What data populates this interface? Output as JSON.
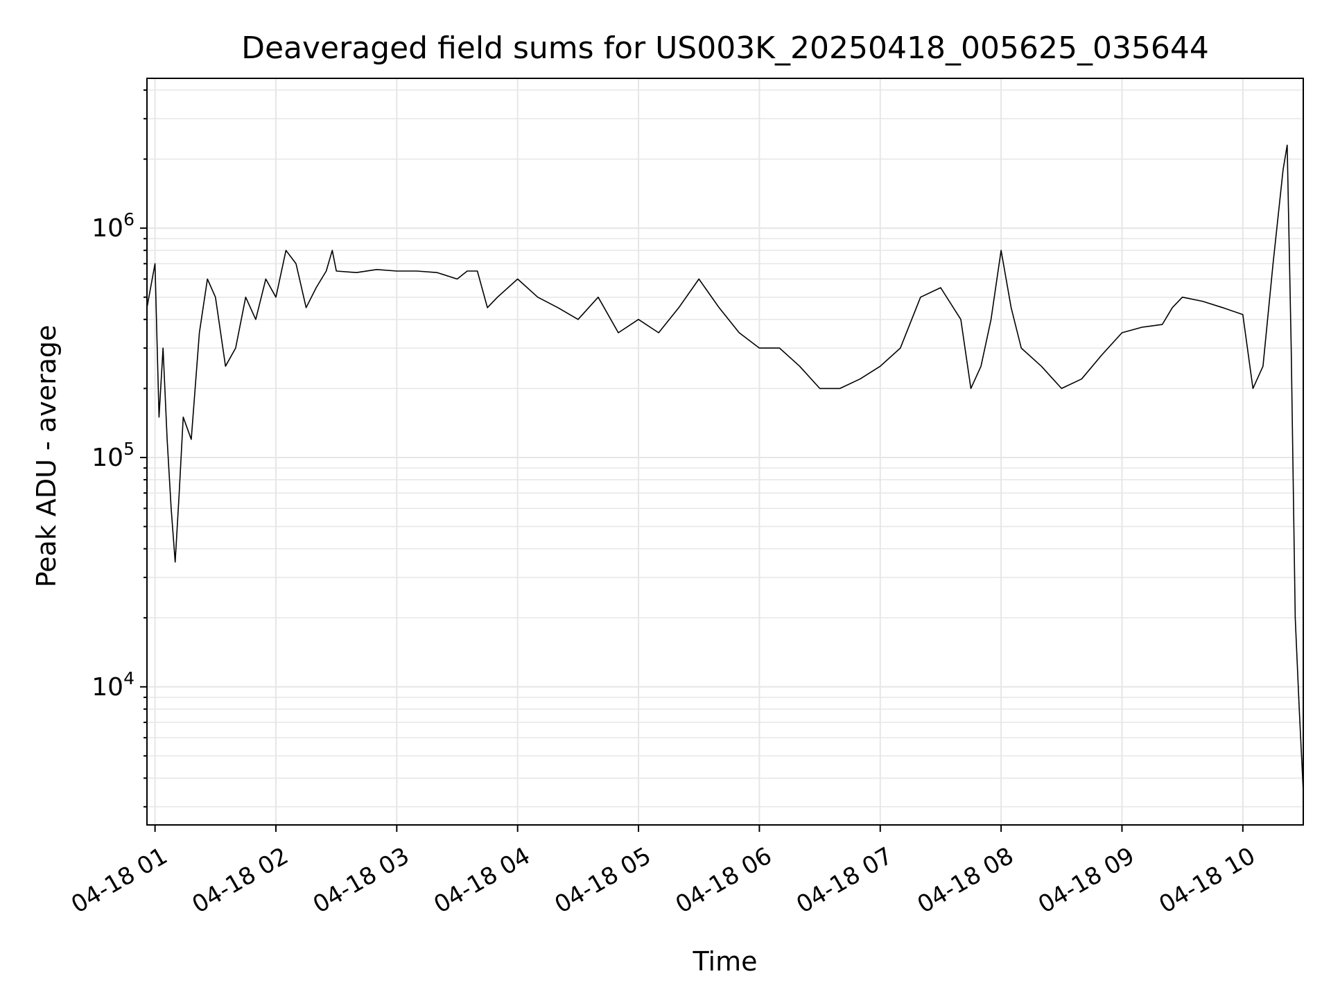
{
  "chart_data": {
    "type": "line",
    "title": "Deaveraged field sums for US003K_20250418_005625_035644",
    "xlabel": "Time",
    "ylabel": "Peak ADU - average",
    "y_scale": "log",
    "ylim": [
      2500,
      4500000
    ],
    "xlim": [
      "2025-04-18 00:56",
      "2025-04-18 10:30"
    ],
    "x_ticks": [
      "2025-04-18 01:00",
      "2025-04-18 02:00",
      "2025-04-18 03:00",
      "2025-04-18 04:00",
      "2025-04-18 05:00",
      "2025-04-18 06:00",
      "2025-04-18 07:00",
      "2025-04-18 08:00",
      "2025-04-18 09:00",
      "2025-04-18 10:00"
    ],
    "x_tick_labels": [
      "04-18 01",
      "04-18 02",
      "04-18 03",
      "04-18 04",
      "04-18 05",
      "04-18 06",
      "04-18 07",
      "04-18 08",
      "04-18 09",
      "04-18 10"
    ],
    "y_ticks": [
      10000,
      100000,
      1000000
    ],
    "y_tick_base": "10",
    "y_tick_exponents": [
      "4",
      "5",
      "6"
    ],
    "grid": true,
    "legend": "none",
    "colors": {
      "line": "#000000",
      "grid": "#e6e6e6",
      "axes": "#000000"
    },
    "series": [
      {
        "points": [
          [
            "2025-04-18 00:56",
            450000
          ],
          [
            "2025-04-18 01:00",
            700000
          ],
          [
            "2025-04-18 01:02",
            150000
          ],
          [
            "2025-04-18 01:04",
            300000
          ],
          [
            "2025-04-18 01:06",
            120000
          ],
          [
            "2025-04-18 01:08",
            60000
          ],
          [
            "2025-04-18 01:10",
            35000
          ],
          [
            "2025-04-18 01:12",
            70000
          ],
          [
            "2025-04-18 01:14",
            150000
          ],
          [
            "2025-04-18 01:18",
            120000
          ],
          [
            "2025-04-18 01:22",
            350000
          ],
          [
            "2025-04-18 01:26",
            600000
          ],
          [
            "2025-04-18 01:30",
            500000
          ],
          [
            "2025-04-18 01:35",
            250000
          ],
          [
            "2025-04-18 01:40",
            300000
          ],
          [
            "2025-04-18 01:45",
            500000
          ],
          [
            "2025-04-18 01:50",
            400000
          ],
          [
            "2025-04-18 01:55",
            600000
          ],
          [
            "2025-04-18 02:00",
            500000
          ],
          [
            "2025-04-18 02:05",
            800000
          ],
          [
            "2025-04-18 02:10",
            700000
          ],
          [
            "2025-04-18 02:15",
            450000
          ],
          [
            "2025-04-18 02:20",
            550000
          ],
          [
            "2025-04-18 02:25",
            650000
          ],
          [
            "2025-04-18 02:28",
            800000
          ],
          [
            "2025-04-18 02:30",
            650000
          ],
          [
            "2025-04-18 02:40",
            640000
          ],
          [
            "2025-04-18 02:50",
            660000
          ],
          [
            "2025-04-18 03:00",
            650000
          ],
          [
            "2025-04-18 03:10",
            650000
          ],
          [
            "2025-04-18 03:20",
            640000
          ],
          [
            "2025-04-18 03:30",
            600000
          ],
          [
            "2025-04-18 03:35",
            650000
          ],
          [
            "2025-04-18 03:40",
            650000
          ],
          [
            "2025-04-18 03:45",
            450000
          ],
          [
            "2025-04-18 03:50",
            500000
          ],
          [
            "2025-04-18 04:00",
            600000
          ],
          [
            "2025-04-18 04:10",
            500000
          ],
          [
            "2025-04-18 04:20",
            450000
          ],
          [
            "2025-04-18 04:30",
            400000
          ],
          [
            "2025-04-18 04:40",
            500000
          ],
          [
            "2025-04-18 04:50",
            350000
          ],
          [
            "2025-04-18 05:00",
            400000
          ],
          [
            "2025-04-18 05:10",
            350000
          ],
          [
            "2025-04-18 05:20",
            450000
          ],
          [
            "2025-04-18 05:30",
            600000
          ],
          [
            "2025-04-18 05:40",
            450000
          ],
          [
            "2025-04-18 05:50",
            350000
          ],
          [
            "2025-04-18 06:00",
            300000
          ],
          [
            "2025-04-18 06:10",
            300000
          ],
          [
            "2025-04-18 06:20",
            250000
          ],
          [
            "2025-04-18 06:30",
            200000
          ],
          [
            "2025-04-18 06:40",
            200000
          ],
          [
            "2025-04-18 06:50",
            220000
          ],
          [
            "2025-04-18 07:00",
            250000
          ],
          [
            "2025-04-18 07:10",
            300000
          ],
          [
            "2025-04-18 07:20",
            500000
          ],
          [
            "2025-04-18 07:30",
            550000
          ],
          [
            "2025-04-18 07:40",
            400000
          ],
          [
            "2025-04-18 07:45",
            200000
          ],
          [
            "2025-04-18 07:50",
            250000
          ],
          [
            "2025-04-18 07:55",
            400000
          ],
          [
            "2025-04-18 08:00",
            800000
          ],
          [
            "2025-04-18 08:05",
            450000
          ],
          [
            "2025-04-18 08:10",
            300000
          ],
          [
            "2025-04-18 08:20",
            250000
          ],
          [
            "2025-04-18 08:30",
            200000
          ],
          [
            "2025-04-18 08:40",
            220000
          ],
          [
            "2025-04-18 08:50",
            280000
          ],
          [
            "2025-04-18 09:00",
            350000
          ],
          [
            "2025-04-18 09:10",
            370000
          ],
          [
            "2025-04-18 09:20",
            380000
          ],
          [
            "2025-04-18 09:25",
            450000
          ],
          [
            "2025-04-18 09:30",
            500000
          ],
          [
            "2025-04-18 09:40",
            480000
          ],
          [
            "2025-04-18 09:50",
            450000
          ],
          [
            "2025-04-18 10:00",
            420000
          ],
          [
            "2025-04-18 10:05",
            200000
          ],
          [
            "2025-04-18 10:10",
            250000
          ],
          [
            "2025-04-18 10:15",
            700000
          ],
          [
            "2025-04-18 10:20",
            1800000
          ],
          [
            "2025-04-18 10:22",
            2300000
          ],
          [
            "2025-04-18 10:24",
            300000
          ],
          [
            "2025-04-18 10:26",
            20000
          ],
          [
            "2025-04-18 10:28",
            8000
          ],
          [
            "2025-04-18 10:30",
            3500
          ]
        ]
      }
    ]
  }
}
